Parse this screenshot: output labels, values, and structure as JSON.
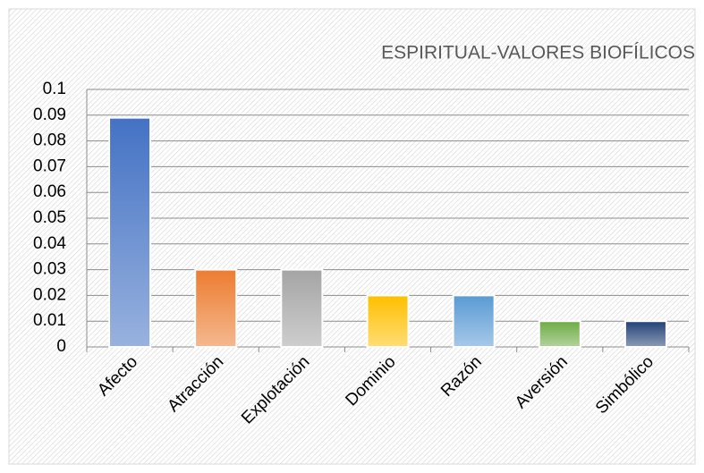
{
  "chart_data": {
    "type": "bar",
    "title": "ESPIRITUAL-VALORES BIOFÍLICOS",
    "categories": [
      "Afecto",
      "Atracción",
      "Explotación",
      "Dominio",
      "Razón",
      "Aversión",
      "Simbólico"
    ],
    "values": [
      0.089,
      0.03,
      0.03,
      0.02,
      0.02,
      0.01,
      0.01
    ],
    "colors": [
      "#4472c4",
      "#ed7d31",
      "#a5a5a5",
      "#ffc000",
      "#5b9bd5",
      "#70ad47",
      "#264478"
    ],
    "ylim": [
      0,
      0.1
    ],
    "yticks": [
      0,
      0.01,
      0.02,
      0.03,
      0.04,
      0.05,
      0.06,
      0.07,
      0.08,
      0.09,
      0.1
    ],
    "grid": true
  }
}
